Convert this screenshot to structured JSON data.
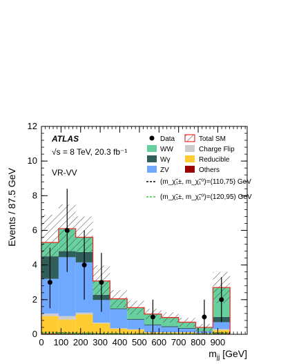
{
  "chart_data": {
    "type": "bar",
    "subtype": "stacked-histogram",
    "xlabel": "m_jj [GeV]",
    "ylabel": "Events / 87.5 GeV",
    "xlim": [
      0,
      1050
    ],
    "ylim": [
      0,
      12
    ],
    "x_ticks": [
      0,
      100,
      200,
      300,
      400,
      500,
      600,
      700,
      800,
      900
    ],
    "y_ticks": [
      0,
      2,
      4,
      6,
      8,
      10,
      12
    ],
    "bin_edges": [
      0,
      87.5,
      175,
      262.5,
      350,
      437.5,
      525,
      612.5,
      700,
      787.5,
      875,
      962.5
    ],
    "annotations": {
      "experiment": "ATLAS",
      "energy": "√s = 8 TeV, 20.3 fb⁻¹",
      "region": "VR-VV"
    },
    "legend": {
      "data": "Data",
      "total_sm": "Total SM",
      "ww": "WW",
      "charge_flip": "Charge Flip",
      "wgamma": "Wγ",
      "reducible": "Reducible",
      "zv": "ZV",
      "others": "Others",
      "signal1": "(m_χ̃₁±, m_χ̃₁⁰)=(110,75) GeV",
      "signal2": "(m_χ̃₁±, m_χ̃₁⁰)=(120,95) GeV"
    },
    "colors": {
      "ww": "#66d19e",
      "wgamma": "#2f5f5a",
      "zv": "#6fa8ff",
      "charge_flip": "#cccccc",
      "reducible": "#ffcc33",
      "others": "#990000",
      "total_sm": "#e8302b",
      "signal1": "#000000",
      "signal2": "#33cc33"
    },
    "series": [
      {
        "name": "Others",
        "values": [
          0.05,
          0.05,
          0.05,
          0.03,
          0.02,
          0.02,
          0.01,
          0.01,
          0.01,
          0.01,
          0.05
        ]
      },
      {
        "name": "Reducible",
        "values": [
          1.0,
          0.8,
          1.1,
          0.6,
          0.3,
          0.25,
          0.1,
          0.1,
          0.1,
          0.05,
          0.2
        ]
      },
      {
        "name": "Charge Flip",
        "values": [
          0.15,
          0.2,
          0.1,
          0.05,
          0.03,
          0.02,
          0.01,
          0.01,
          0.01,
          0.01,
          0.05
        ]
      },
      {
        "name": "ZV",
        "values": [
          2.0,
          3.4,
          2.9,
          1.3,
          1.1,
          0.55,
          0.4,
          0.3,
          0.2,
          0.1,
          0.4
        ]
      },
      {
        "name": "Wγ",
        "values": [
          1.3,
          0.35,
          0.6,
          0.3,
          0.05,
          0.05,
          0.05,
          0.05,
          0.05,
          0.02,
          0.3
        ]
      },
      {
        "name": "WW",
        "values": [
          0.8,
          1.3,
          0.85,
          0.8,
          0.55,
          0.65,
          0.6,
          0.5,
          0.33,
          0.21,
          1.7
        ]
      }
    ],
    "total_sm": [
      5.3,
      6.1,
      5.6,
      3.08,
      2.05,
      1.54,
      1.17,
      0.97,
      0.7,
      0.4,
      2.7
    ],
    "total_sm_uncertainty": [
      1.6,
      1.4,
      1.2,
      0.9,
      0.5,
      0.4,
      0.3,
      0.3,
      0.25,
      0.2,
      0.9
    ],
    "data": {
      "x": [
        43.75,
        131.25,
        218.75,
        306.25,
        568.75,
        831.25,
        918.75
      ],
      "y": [
        3,
        6,
        4,
        3,
        1,
        1,
        2
      ],
      "err_low": [
        1.5,
        2.4,
        2.0,
        1.7,
        1.0,
        1.0,
        1.3
      ],
      "err_high": [
        2.0,
        2.4,
        2.0,
        1.7,
        1.0,
        1.0,
        1.3
      ]
    },
    "signal_110_75": [
      0.1,
      0.08,
      0.06,
      0.05,
      0.04,
      0.03,
      0.03,
      0.02,
      0.02,
      0.02,
      0.08
    ],
    "signal_120_95": [
      0.08,
      0.06,
      0.05,
      0.04,
      0.03,
      0.02,
      0.02,
      0.02,
      0.02,
      0.01,
      0.06
    ]
  }
}
